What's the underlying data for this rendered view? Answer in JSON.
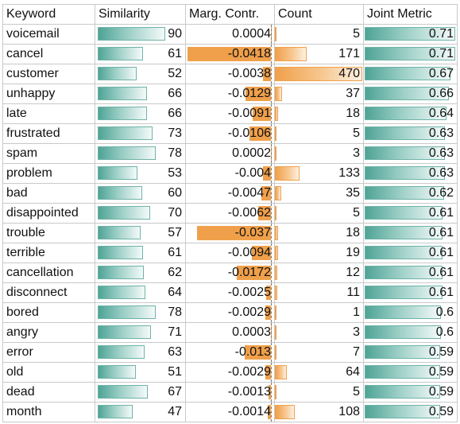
{
  "headers": [
    "Keyword",
    "Similarity",
    "Marg. Contr.",
    "Count",
    "Joint Metric"
  ],
  "rows": [
    {
      "keyword": "voicemail",
      "similarity": "90",
      "marg": "0.0004",
      "count": "5",
      "joint": "0.71"
    },
    {
      "keyword": "cancel",
      "similarity": "61",
      "marg": "-0.0418",
      "count": "171",
      "joint": "0.71"
    },
    {
      "keyword": "customer",
      "similarity": "52",
      "marg": "-0.0038",
      "count": "470",
      "joint": "0.67"
    },
    {
      "keyword": "unhappy",
      "similarity": "66",
      "marg": "-0.0129",
      "count": "37",
      "joint": "0.66"
    },
    {
      "keyword": "late",
      "similarity": "66",
      "marg": "-0.0091",
      "count": "18",
      "joint": "0.64"
    },
    {
      "keyword": "frustrated",
      "similarity": "73",
      "marg": "-0.0106",
      "count": "5",
      "joint": "0.63"
    },
    {
      "keyword": "spam",
      "similarity": "78",
      "marg": "0.0002",
      "count": "3",
      "joint": "0.63"
    },
    {
      "keyword": "problem",
      "similarity": "53",
      "marg": "-0.004",
      "count": "133",
      "joint": "0.63"
    },
    {
      "keyword": "bad",
      "similarity": "60",
      "marg": "-0.0047",
      "count": "35",
      "joint": "0.62"
    },
    {
      "keyword": "disappointed",
      "similarity": "70",
      "marg": "-0.0062",
      "count": "5",
      "joint": "0.61"
    },
    {
      "keyword": "trouble",
      "similarity": "57",
      "marg": "-0.037",
      "count": "18",
      "joint": "0.61"
    },
    {
      "keyword": "terrible",
      "similarity": "61",
      "marg": "-0.0094",
      "count": "19",
      "joint": "0.61"
    },
    {
      "keyword": "cancellation",
      "similarity": "62",
      "marg": "-0.0172",
      "count": "12",
      "joint": "0.61"
    },
    {
      "keyword": "disconnect",
      "similarity": "64",
      "marg": "-0.0025",
      "count": "11",
      "joint": "0.61"
    },
    {
      "keyword": "bored",
      "similarity": "78",
      "marg": "-0.0029",
      "count": "1",
      "joint": "0.6"
    },
    {
      "keyword": "angry",
      "similarity": "71",
      "marg": "0.0003",
      "count": "3",
      "joint": "0.6"
    },
    {
      "keyword": "error",
      "similarity": "63",
      "marg": "-0.013",
      "count": "7",
      "joint": "0.59"
    },
    {
      "keyword": "old",
      "similarity": "51",
      "marg": "-0.0029",
      "count": "64",
      "joint": "0.59"
    },
    {
      "keyword": "dead",
      "similarity": "67",
      "marg": "-0.0013",
      "count": "5",
      "joint": "0.59"
    },
    {
      "keyword": "month",
      "similarity": "47",
      "marg": "-0.0014",
      "count": "108",
      "joint": "0.59"
    }
  ],
  "colors": {
    "similarity_bar": "#4fa396",
    "marg_bar": "#f0a04b",
    "count_bar": "#f0a04b",
    "joint_bar": "#4fa396"
  }
}
